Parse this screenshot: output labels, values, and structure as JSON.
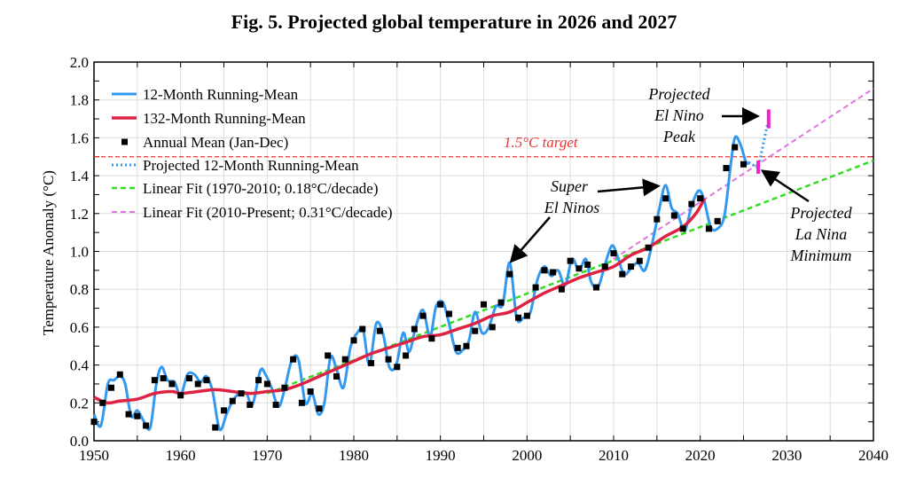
{
  "chart_data": {
    "type": "line",
    "title": "Fig. 5. Projected global temperature in 2026 and 2027",
    "ylabel": "Temperature Anomaly (°C)",
    "xlabel": "",
    "xlim": [
      1950,
      2040
    ],
    "ylim": [
      0,
      2.0
    ],
    "xticks": [
      1950,
      1960,
      1970,
      1980,
      1990,
      2000,
      2010,
      2020,
      2030,
      2040
    ],
    "yticks": [
      "0.0",
      "0.2",
      "0.4",
      "0.6",
      "0.8",
      "1.0",
      "1.2",
      "1.4",
      "1.6",
      "1.8",
      "2.0"
    ],
    "grid": true,
    "legend_position": "top-left",
    "colors": {
      "running12": "#3399ee",
      "running132": "#dd2244",
      "annual": "#000000",
      "projected": "#3399ee",
      "fit1": "#33dd22",
      "fit2": "#dd77dd",
      "target": "#ee3333",
      "marker": "#ee22cc"
    },
    "legend": [
      "12-Month Running-Mean",
      "132-Month Running-Mean",
      "Annual Mean (Jan-Dec)",
      "Projected 12-Month Running-Mean",
      "Linear Fit (1970-2010; 0.18°C/decade)",
      "Linear Fit (2010-Present; 0.31°C/decade)"
    ],
    "annual_mean": {
      "x": [
        1950,
        1951,
        1952,
        1953,
        1954,
        1955,
        1956,
        1957,
        1958,
        1959,
        1960,
        1961,
        1962,
        1963,
        1964,
        1965,
        1966,
        1967,
        1968,
        1969,
        1970,
        1971,
        1972,
        1973,
        1974,
        1975,
        1976,
        1977,
        1978,
        1979,
        1980,
        1981,
        1982,
        1983,
        1984,
        1985,
        1986,
        1987,
        1988,
        1989,
        1990,
        1991,
        1992,
        1993,
        1994,
        1995,
        1996,
        1997,
        1998,
        1999,
        2000,
        2001,
        2002,
        2003,
        2004,
        2005,
        2006,
        2007,
        2008,
        2009,
        2010,
        2011,
        2012,
        2013,
        2014,
        2015,
        2016,
        2017,
        2018,
        2019,
        2020,
        2021,
        2022,
        2023,
        2024,
        2025
      ],
      "y": [
        0.1,
        0.2,
        0.28,
        0.35,
        0.14,
        0.13,
        0.08,
        0.32,
        0.33,
        0.3,
        0.24,
        0.33,
        0.3,
        0.32,
        0.07,
        0.16,
        0.21,
        0.25,
        0.19,
        0.32,
        0.3,
        0.19,
        0.28,
        0.43,
        0.2,
        0.26,
        0.17,
        0.45,
        0.34,
        0.43,
        0.53,
        0.59,
        0.41,
        0.58,
        0.43,
        0.39,
        0.45,
        0.59,
        0.66,
        0.54,
        0.72,
        0.67,
        0.49,
        0.5,
        0.58,
        0.72,
        0.6,
        0.73,
        0.88,
        0.65,
        0.66,
        0.81,
        0.9,
        0.89,
        0.8,
        0.95,
        0.91,
        0.93,
        0.81,
        0.92,
        0.99,
        0.88,
        0.92,
        0.95,
        1.02,
        1.17,
        1.28,
        1.19,
        1.12,
        1.25,
        1.28,
        1.12,
        1.16,
        1.44,
        1.55,
        1.46
      ]
    },
    "running_12": {
      "x": [
        1950,
        1950.8,
        1951.6,
        1952.3,
        1953,
        1953.6,
        1954.3,
        1955,
        1955.8,
        1956.5,
        1957.2,
        1957.8,
        1958.5,
        1959.3,
        1960,
        1960.8,
        1961.6,
        1962.3,
        1963,
        1963.7,
        1964.5,
        1965.3,
        1966,
        1966.8,
        1967.6,
        1968.3,
        1969.2,
        1969.8,
        1970.5,
        1971.3,
        1972,
        1972.8,
        1973.6,
        1974.4,
        1975.2,
        1975.9,
        1976.6,
        1977.3,
        1978,
        1978.8,
        1979.6,
        1980.4,
        1981.1,
        1981.8,
        1982.6,
        1983.4,
        1984.1,
        1984.9,
        1985.7,
        1986.4,
        1987.2,
        1988,
        1988.8,
        1989.5,
        1990.3,
        1991,
        1991.8,
        1992.6,
        1993.3,
        1994,
        1994.8,
        1995.6,
        1996.4,
        1997.2,
        1998,
        1998.8,
        1999.6,
        2000.4,
        2001.2,
        2002,
        2002.8,
        2003.6,
        2004.4,
        2005.2,
        2006,
        2006.8,
        2007.4,
        2008.2,
        2009,
        2009.8,
        2010.4,
        2011.2,
        2012,
        2012.8,
        2013.6,
        2014.4,
        2015.3,
        2016,
        2016.7,
        2017.4,
        2018.2,
        2019,
        2019.8,
        2020.4,
        2021.2,
        2022,
        2022.8,
        2023.5,
        2024,
        2024.6,
        2025.3,
        2025.6
      ],
      "y": [
        0.14,
        0.08,
        0.3,
        0.32,
        0.34,
        0.3,
        0.13,
        0.16,
        0.1,
        0.07,
        0.3,
        0.39,
        0.32,
        0.31,
        0.24,
        0.35,
        0.35,
        0.31,
        0.34,
        0.26,
        0.06,
        0.14,
        0.21,
        0.25,
        0.25,
        0.19,
        0.37,
        0.35,
        0.28,
        0.18,
        0.27,
        0.42,
        0.43,
        0.2,
        0.25,
        0.14,
        0.2,
        0.44,
        0.38,
        0.28,
        0.49,
        0.57,
        0.58,
        0.4,
        0.62,
        0.56,
        0.39,
        0.4,
        0.57,
        0.47,
        0.61,
        0.69,
        0.55,
        0.71,
        0.73,
        0.62,
        0.47,
        0.48,
        0.53,
        0.68,
        0.57,
        0.6,
        0.71,
        0.72,
        0.94,
        0.65,
        0.65,
        0.68,
        0.85,
        0.92,
        0.87,
        0.9,
        0.82,
        0.96,
        0.9,
        0.96,
        0.84,
        0.81,
        0.93,
        1.03,
        0.98,
        0.88,
        0.91,
        0.94,
        0.9,
        1.03,
        1.23,
        1.35,
        1.23,
        1.2,
        1.11,
        1.24,
        1.32,
        1.28,
        1.13,
        1.12,
        1.19,
        1.45,
        1.6,
        1.57,
        1.47,
        1.47
      ]
    },
    "running_132": {
      "x": [
        1950,
        1951.5,
        1953,
        1955,
        1957,
        1959,
        1960,
        1962,
        1964,
        1966,
        1968,
        1970,
        1972,
        1974,
        1976,
        1978,
        1980,
        1982,
        1984,
        1986,
        1988,
        1990,
        1992,
        1994,
        1996,
        1998,
        2000,
        2002,
        2004,
        2006,
        2008,
        2010,
        2012,
        2014,
        2016,
        2018,
        2019.5,
        2020.5
      ],
      "y": [
        0.23,
        0.2,
        0.21,
        0.22,
        0.25,
        0.26,
        0.25,
        0.26,
        0.27,
        0.26,
        0.25,
        0.26,
        0.27,
        0.3,
        0.34,
        0.38,
        0.42,
        0.46,
        0.49,
        0.52,
        0.55,
        0.56,
        0.59,
        0.62,
        0.66,
        0.68,
        0.73,
        0.78,
        0.82,
        0.86,
        0.89,
        0.92,
        0.98,
        1.02,
        1.08,
        1.13,
        1.2,
        1.28
      ]
    },
    "projected_12": {
      "x": [
        2025.6,
        2026.7,
        2027.8
      ],
      "y": [
        1.47,
        1.44,
        1.68
      ]
    },
    "projection_markers": [
      {
        "x": 2026.7,
        "y_low": 1.41,
        "y_high": 1.48
      },
      {
        "x": 2027.9,
        "y_low": 1.65,
        "y_high": 1.75
      }
    ],
    "fit_1970_2010": {
      "x": [
        1970,
        2040
      ],
      "y": [
        0.25,
        1.48
      ]
    },
    "fit_2010_present": {
      "x": [
        2010,
        2040
      ],
      "y": [
        0.96,
        1.86
      ]
    },
    "target": {
      "y": 1.5,
      "label": "1.5°C target"
    },
    "annotations": {
      "el_nino_peak": [
        "Projected",
        "El Nino",
        "Peak"
      ],
      "super": [
        "Super",
        "El Ninos"
      ],
      "la_nina": [
        "Projected",
        "La Nina",
        "Minimum"
      ]
    }
  }
}
